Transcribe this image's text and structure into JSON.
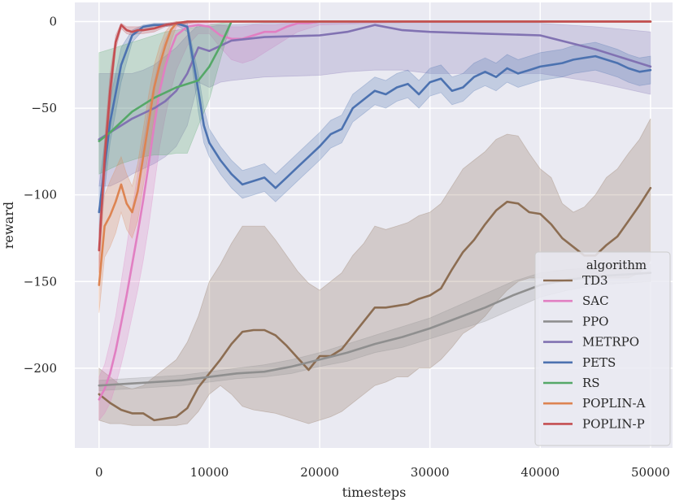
{
  "chart_data": {
    "type": "line",
    "title": "",
    "xlabel": "timesteps",
    "ylabel": "reward",
    "xlim": [
      -2200,
      52000
    ],
    "ylim": [
      -246,
      11
    ],
    "xticks": [
      0,
      10000,
      20000,
      30000,
      40000,
      50000
    ],
    "yticks": [
      0,
      -50,
      -100,
      -150,
      -200
    ],
    "grid": true,
    "legend_title": "algorithm",
    "legend_position": "lower-right",
    "series": [
      {
        "name": "TD3",
        "color": "#8c6d52",
        "x": [
          0,
          1000,
          2000,
          3000,
          4000,
          5000,
          6000,
          7000,
          8000,
          9000,
          10000,
          11000,
          12000,
          13000,
          14000,
          15000,
          16000,
          17000,
          18000,
          19000,
          20000,
          21000,
          22000,
          23000,
          24000,
          25000,
          26000,
          27000,
          28000,
          29000,
          30000,
          31000,
          32000,
          33000,
          34000,
          35000,
          36000,
          37000,
          38000,
          39000,
          40000,
          41000,
          42000,
          43000,
          44000,
          45000,
          46000,
          47000,
          48000,
          49000,
          50000
        ],
        "y": [
          -215,
          -220,
          -224,
          -226,
          -226,
          -230,
          -229,
          -228,
          -223,
          -211,
          -203,
          -195,
          -186,
          -179,
          -178,
          -178,
          -181,
          -187,
          -194,
          -201,
          -193,
          -193,
          -189,
          -181,
          -173,
          -165,
          -165,
          -164,
          -163,
          -160,
          -158,
          -154,
          -143,
          -133,
          -126,
          -117,
          -109,
          -104,
          -105,
          -110,
          -111,
          -117,
          -125,
          -130,
          -135,
          -135,
          -129,
          -124,
          -115,
          -106,
          -96
        ],
        "upper": [
          -200,
          -205,
          -210,
          -212,
          -210,
          -205,
          -200,
          -195,
          -185,
          -170,
          -150,
          -140,
          -128,
          -118,
          -118,
          -118,
          -126,
          -135,
          -144,
          -151,
          -155,
          -150,
          -145,
          -135,
          -128,
          -118,
          -120,
          -118,
          -116,
          -112,
          -110,
          -105,
          -95,
          -85,
          -80,
          -75,
          -68,
          -65,
          -66,
          -76,
          -85,
          -90,
          -105,
          -110,
          -107,
          -100,
          -90,
          -85,
          -76,
          -68,
          -56
        ],
        "lower": [
          -230,
          -232,
          -232,
          -233,
          -233,
          -233,
          -233,
          -233,
          -232,
          -225,
          -215,
          -210,
          -215,
          -222,
          -224,
          -225,
          -226,
          -228,
          -230,
          -232,
          -230,
          -228,
          -225,
          -220,
          -215,
          -210,
          -208,
          -205,
          -205,
          -200,
          -200,
          -195,
          -188,
          -180,
          -176,
          -170,
          -162,
          -155,
          -150,
          -148,
          -148,
          -148,
          -148,
          -148,
          -148,
          -148,
          -148,
          -148,
          -148,
          -145,
          -138
        ]
      },
      {
        "name": "SAC",
        "color": "#e17fc2",
        "x": [
          0,
          500,
          1000,
          1500,
          2000,
          2500,
          3000,
          3500,
          4000,
          4500,
          5000,
          5500,
          6000,
          6500,
          7000,
          8000,
          9000,
          10000,
          11000,
          12000,
          13000,
          14000,
          15000,
          16000,
          17000,
          18000,
          19000,
          20000,
          25000,
          30000,
          35000,
          40000,
          45000,
          50000
        ],
        "y": [
          -218,
          -212,
          -203,
          -190,
          -174,
          -158,
          -140,
          -122,
          -103,
          -82,
          -60,
          -40,
          -26,
          -16,
          -8,
          -3,
          -2,
          -3,
          -8,
          -10,
          -10,
          -8,
          -6,
          -6,
          -3,
          -1,
          -1,
          0,
          0,
          0,
          0,
          0,
          0,
          0
        ],
        "upper": [
          -205,
          -198,
          -185,
          -170,
          -150,
          -130,
          -108,
          -88,
          -70,
          -50,
          -35,
          -20,
          -10,
          -4,
          -2,
          -1,
          -1,
          -1,
          -2,
          -3,
          -3,
          -2,
          -2,
          -2,
          -1,
          -1,
          -1,
          0,
          0,
          0,
          0,
          0,
          0,
          0
        ],
        "lower": [
          -230,
          -226,
          -220,
          -210,
          -198,
          -185,
          -170,
          -155,
          -138,
          -118,
          -95,
          -72,
          -55,
          -40,
          -28,
          -14,
          -7,
          -7,
          -15,
          -22,
          -24,
          -22,
          -18,
          -14,
          -10,
          -6,
          -4,
          -2,
          -1,
          0,
          0,
          0,
          0,
          0
        ]
      },
      {
        "name": "PPO",
        "color": "#8f8f8f",
        "x": [
          0,
          2500,
          5000,
          7500,
          10000,
          12500,
          15000,
          17500,
          20000,
          22500,
          25000,
          27500,
          30000,
          32500,
          35000,
          37500,
          40000,
          42500,
          45000,
          47500,
          50000
        ],
        "y": [
          -210,
          -209,
          -208,
          -207,
          -205,
          -203,
          -202,
          -199,
          -195,
          -191,
          -186,
          -182,
          -177,
          -171,
          -165,
          -158,
          -152,
          -149,
          -147,
          -146,
          -145
        ],
        "upper": [
          -207,
          -206,
          -205,
          -204,
          -202,
          -200,
          -198,
          -195,
          -191,
          -186,
          -181,
          -176,
          -171,
          -164,
          -157,
          -150,
          -145,
          -143,
          -142,
          -141,
          -140
        ],
        "lower": [
          -213,
          -212,
          -211,
          -210,
          -208,
          -206,
          -205,
          -203,
          -199,
          -196,
          -191,
          -188,
          -183,
          -178,
          -173,
          -166,
          -159,
          -155,
          -152,
          -151,
          -150
        ]
      },
      {
        "name": "METRPO",
        "color": "#8172b2",
        "x": [
          0,
          1000,
          2000,
          3000,
          4000,
          5000,
          6000,
          7000,
          8000,
          9000,
          10000,
          11000,
          12000,
          15000,
          20000,
          22500,
          25000,
          27500,
          30000,
          35000,
          40000,
          45000,
          50000
        ],
        "y": [
          -68,
          -64,
          -60,
          -56,
          -53,
          -50,
          -46,
          -40,
          -30,
          -15,
          -17,
          -14,
          -11,
          -9,
          -8,
          -6,
          -2,
          -5,
          -6,
          -7,
          -8,
          -16,
          -26
        ],
        "upper": [
          -30,
          -30,
          -30,
          -30,
          -28,
          -25,
          -20,
          -15,
          -8,
          -2,
          -3,
          -2,
          -2,
          -1,
          -1,
          -1,
          0,
          -1,
          -1,
          -1,
          -1,
          -3,
          -6
        ],
        "lower": [
          -95,
          -95,
          -92,
          -88,
          -85,
          -82,
          -78,
          -72,
          -60,
          -35,
          -38,
          -35,
          -34,
          -32,
          -31,
          -29,
          -28,
          -28,
          -30,
          -30,
          -30,
          -35,
          -42
        ]
      },
      {
        "name": "PETS",
        "color": "#4c72b0",
        "x": [
          0,
          1000,
          2000,
          3000,
          4000,
          5000,
          6000,
          7000,
          8000,
          9000,
          9500,
          10000,
          11000,
          12000,
          13000,
          14000,
          15000,
          16000,
          17000,
          18000,
          19000,
          20000,
          21000,
          22000,
          23000,
          24000,
          25000,
          26000,
          27000,
          28000,
          29000,
          30000,
          31000,
          32000,
          33000,
          34000,
          35000,
          36000,
          37000,
          38000,
          39000,
          40000,
          41000,
          42000,
          43000,
          44000,
          45000,
          46000,
          47000,
          48000,
          49000,
          50000
        ],
        "y": [
          -110,
          -58,
          -25,
          -8,
          -3,
          -2,
          -2,
          -1,
          -3,
          -40,
          -60,
          -70,
          -80,
          -88,
          -94,
          -92,
          -90,
          -96,
          -90,
          -84,
          -78,
          -72,
          -65,
          -62,
          -50,
          -45,
          -40,
          -42,
          -38,
          -36,
          -42,
          -35,
          -33,
          -40,
          -38,
          -32,
          -29,
          -32,
          -27,
          -30,
          -28,
          -26,
          -25,
          -24,
          -22,
          -21,
          -20,
          -22,
          -24,
          -27,
          -29,
          -28
        ],
        "upper": [
          -95,
          -45,
          -15,
          -5,
          -2,
          -1,
          -1,
          -1,
          -1,
          -30,
          -50,
          -62,
          -72,
          -80,
          -86,
          -84,
          -82,
          -88,
          -82,
          -76,
          -70,
          -64,
          -57,
          -54,
          -42,
          -37,
          -32,
          -34,
          -30,
          -28,
          -34,
          -27,
          -25,
          -32,
          -30,
          -24,
          -21,
          -24,
          -19,
          -22,
          -20,
          -18,
          -17,
          -16,
          -14,
          -13,
          -12,
          -14,
          -16,
          -19,
          -21,
          -20
        ],
        "lower": [
          -125,
          -70,
          -35,
          -12,
          -5,
          -3,
          -3,
          -2,
          -6,
          -52,
          -70,
          -78,
          -88,
          -96,
          -102,
          -100,
          -98,
          -104,
          -98,
          -92,
          -86,
          -80,
          -73,
          -70,
          -58,
          -53,
          -48,
          -50,
          -46,
          -44,
          -50,
          -43,
          -41,
          -48,
          -46,
          -40,
          -37,
          -40,
          -35,
          -38,
          -36,
          -34,
          -33,
          -32,
          -30,
          -29,
          -28,
          -30,
          -32,
          -35,
          -37,
          -36
        ]
      },
      {
        "name": "RS",
        "color": "#55a868",
        "x": [
          0,
          1000,
          2000,
          3000,
          4000,
          5000,
          6000,
          7000,
          8000,
          9000,
          10000,
          11000,
          12000,
          13000,
          15000,
          20000,
          25000,
          30000,
          35000,
          40000,
          45000,
          50000
        ],
        "y": [
          -69,
          -64,
          -58,
          -52,
          -48,
          -44,
          -41,
          -38,
          -36,
          -34,
          -26,
          -14,
          0,
          0,
          0,
          0,
          0,
          0,
          0,
          0,
          0,
          0
        ],
        "upper": [
          -18,
          -16,
          -14,
          -12,
          -10,
          -8,
          -6,
          -5,
          -4,
          -3,
          -2,
          -1,
          0,
          0,
          0,
          0,
          0,
          0,
          0,
          0,
          0,
          0
        ],
        "lower": [
          -88,
          -85,
          -82,
          -80,
          -78,
          -77,
          -77,
          -76,
          -76,
          -60,
          -45,
          -22,
          0,
          0,
          0,
          0,
          0,
          0,
          0,
          0,
          0,
          0
        ]
      },
      {
        "name": "POPLIN-A",
        "color": "#dd8452",
        "x": [
          0,
          500,
          1000,
          1500,
          2000,
          2500,
          3000,
          3500,
          4000,
          4500,
          5000,
          5500,
          6000,
          6500,
          7000,
          8000,
          9000,
          10000,
          12500,
          15000,
          20000,
          25000,
          30000,
          35000,
          40000,
          45000,
          50000
        ],
        "y": [
          -152,
          -118,
          -112,
          -104,
          -94,
          -105,
          -110,
          -98,
          -78,
          -58,
          -38,
          -25,
          -14,
          -5,
          -1,
          0,
          0,
          0,
          0,
          0,
          0,
          0,
          0,
          0,
          0,
          0,
          0
        ],
        "upper": [
          -135,
          -100,
          -92,
          -85,
          -78,
          -88,
          -95,
          -82,
          -62,
          -42,
          -25,
          -14,
          -6,
          -2,
          0,
          0,
          0,
          0,
          0,
          0,
          0,
          0,
          0,
          0,
          0,
          0,
          0
        ],
        "lower": [
          -168,
          -136,
          -130,
          -122,
          -110,
          -120,
          -125,
          -115,
          -95,
          -75,
          -55,
          -38,
          -25,
          -12,
          -3,
          -1,
          0,
          0,
          0,
          0,
          0,
          0,
          0,
          0,
          0,
          0,
          0
        ]
      },
      {
        "name": "POPLIN-P",
        "color": "#c44e52",
        "x": [
          0,
          500,
          1000,
          1500,
          2000,
          2500,
          3000,
          3500,
          4000,
          5000,
          6000,
          7000,
          8000,
          10000,
          15000,
          20000,
          25000,
          30000,
          35000,
          40000,
          45000,
          50000
        ],
        "y": [
          -132,
          -80,
          -40,
          -12,
          -2,
          -5,
          -6,
          -5,
          -5,
          -4,
          -2,
          -1,
          0,
          0,
          0,
          0,
          0,
          0,
          0,
          0,
          0,
          0
        ],
        "upper": [
          -120,
          -68,
          -30,
          -8,
          -1,
          -3,
          -3,
          -3,
          -3,
          -2,
          -1,
          0,
          0,
          0,
          0,
          0,
          0,
          0,
          0,
          0,
          0,
          0
        ],
        "lower": [
          -145,
          -92,
          -50,
          -16,
          -4,
          -7,
          -8,
          -7,
          -7,
          -6,
          -3,
          -2,
          -1,
          0,
          0,
          0,
          0,
          0,
          0,
          0,
          0,
          0
        ]
      }
    ]
  }
}
